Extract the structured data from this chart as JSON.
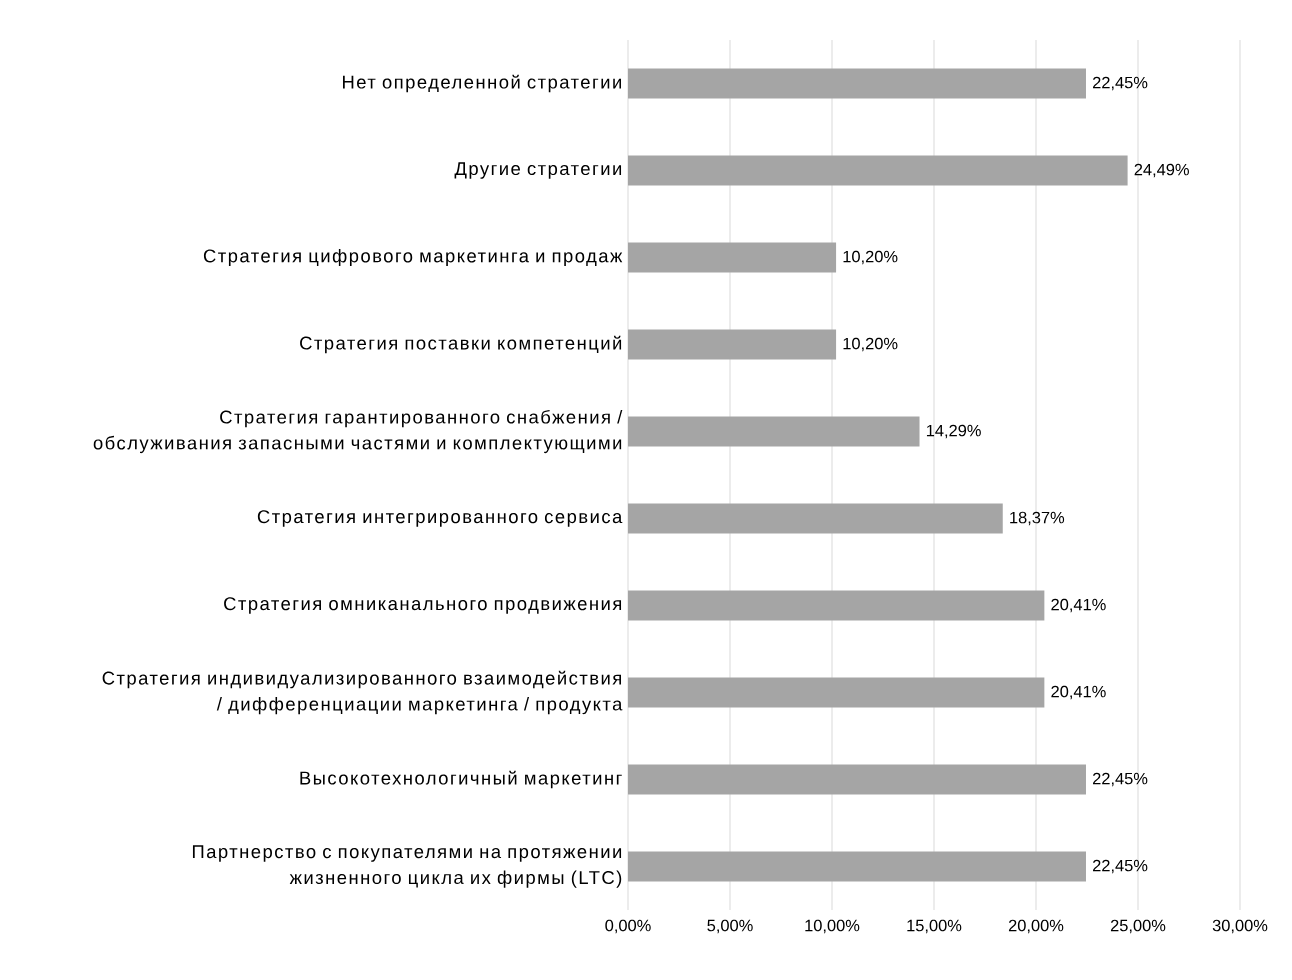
{
  "chart_data": {
    "type": "bar",
    "orientation": "horizontal",
    "categories": [
      "Нет определенной стратегии",
      "Другие стратегии",
      "Стратегия цифрового маркетинга и продаж",
      "Стратегия поставки компетенций",
      "Стратегия гарантированного снабжения / обслуживания запасными частями и комплектующими",
      "Стратегия интегрированного сервиса",
      "Стратегия омниканального продвижения",
      "Стратегия индивидуализированного взаимодействия / дифференциации маркетинга / продукта",
      "Высокотехнологичный маркетинг",
      "Партнерство с покупателями на протяжении жизненного цикла их фирмы (LTC)"
    ],
    "values": [
      22.45,
      24.49,
      10.2,
      10.2,
      14.29,
      18.37,
      20.41,
      20.41,
      22.45,
      22.45
    ],
    "value_labels": [
      "22,45%",
      "24,49%",
      "10,20%",
      "10,20%",
      "14,29%",
      "18,37%",
      "20,41%",
      "20,41%",
      "22,45%",
      "22,45%"
    ],
    "color": "#a5a5a5",
    "xlim": [
      0,
      30
    ],
    "xticks": [
      {
        "value": 0,
        "label": "0,00%"
      },
      {
        "value": 5,
        "label": "5,00%"
      },
      {
        "value": 10,
        "label": "10,00%"
      },
      {
        "value": 15,
        "label": "15,00%"
      },
      {
        "value": 20,
        "label": "20,00%"
      },
      {
        "value": 25,
        "label": "25,00%"
      },
      {
        "value": 30,
        "label": "30,00%"
      }
    ],
    "grid": "x"
  }
}
